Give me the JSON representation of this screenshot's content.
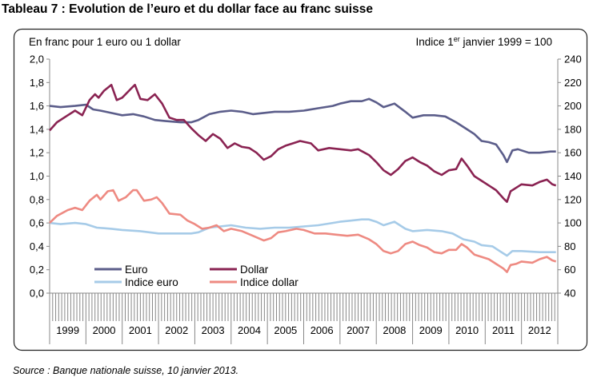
{
  "title": "Tableau 7 : Evolution de l’euro et du dollar face au franc suisse",
  "source": "Source : Banque nationale suisse, 10 janvier 2013.",
  "colors": {
    "euro": "#5b5d8a",
    "dollar": "#8a2352",
    "indice_euro": "#a6cbe8",
    "indice_dollar": "#ee8a82",
    "axis": "#888888",
    "frame": "#222222"
  },
  "chart_data": {
    "type": "line",
    "left_axis_note": "En franc pour 1 euro ou 1 dollar",
    "right_axis_note": {
      "before": "Indice 1",
      "sup": "er",
      "after": " janvier 1999 = 100"
    },
    "left_ylim": [
      0,
      2.0
    ],
    "left_ticks": [
      "0,0",
      "0,2",
      "0,4",
      "0,6",
      "0,8",
      "1,0",
      "1,2",
      "1,4",
      "1,6",
      "1,8",
      "2,0"
    ],
    "right_ylim": [
      40,
      240
    ],
    "right_ticks": [
      "40",
      "60",
      "80",
      "100",
      "120",
      "140",
      "160",
      "180",
      "200",
      "220",
      "240"
    ],
    "years": [
      "1999",
      "2000",
      "2001",
      "2002",
      "2003",
      "2004",
      "2005",
      "2006",
      "2007",
      "2008",
      "2009",
      "2010",
      "2011",
      "2012"
    ],
    "xlim": [
      1999.0,
      2013.0
    ],
    "grid": false,
    "legend_position": "bottom-left",
    "series": [
      {
        "name": "Euro",
        "axis": "left",
        "points": [
          [
            1999.0,
            1.6
          ],
          [
            1999.3,
            1.59
          ],
          [
            1999.7,
            1.6
          ],
          [
            2000.0,
            1.61
          ],
          [
            2000.2,
            1.57
          ],
          [
            2000.4,
            1.56
          ],
          [
            2000.7,
            1.54
          ],
          [
            2001.0,
            1.52
          ],
          [
            2001.3,
            1.53
          ],
          [
            2001.6,
            1.51
          ],
          [
            2001.9,
            1.48
          ],
          [
            2002.2,
            1.47
          ],
          [
            2002.6,
            1.46
          ],
          [
            2002.9,
            1.46
          ],
          [
            2003.1,
            1.48
          ],
          [
            2003.4,
            1.53
          ],
          [
            2003.7,
            1.55
          ],
          [
            2004.0,
            1.56
          ],
          [
            2004.3,
            1.55
          ],
          [
            2004.6,
            1.53
          ],
          [
            2004.9,
            1.54
          ],
          [
            2005.2,
            1.55
          ],
          [
            2005.6,
            1.55
          ],
          [
            2006.0,
            1.56
          ],
          [
            2006.4,
            1.58
          ],
          [
            2006.8,
            1.6
          ],
          [
            2007.0,
            1.62
          ],
          [
            2007.3,
            1.64
          ],
          [
            2007.6,
            1.64
          ],
          [
            2007.8,
            1.66
          ],
          [
            2008.0,
            1.63
          ],
          [
            2008.2,
            1.59
          ],
          [
            2008.5,
            1.62
          ],
          [
            2008.8,
            1.55
          ],
          [
            2009.0,
            1.5
          ],
          [
            2009.3,
            1.52
          ],
          [
            2009.6,
            1.52
          ],
          [
            2009.9,
            1.51
          ],
          [
            2010.2,
            1.46
          ],
          [
            2010.5,
            1.4
          ],
          [
            2010.7,
            1.36
          ],
          [
            2010.9,
            1.3
          ],
          [
            2011.1,
            1.29
          ],
          [
            2011.3,
            1.27
          ],
          [
            2011.5,
            1.18
          ],
          [
            2011.6,
            1.12
          ],
          [
            2011.75,
            1.22
          ],
          [
            2011.9,
            1.23
          ],
          [
            2012.2,
            1.2
          ],
          [
            2012.5,
            1.2
          ],
          [
            2012.8,
            1.21
          ],
          [
            2012.95,
            1.21
          ]
        ]
      },
      {
        "name": "Dollar",
        "axis": "left",
        "points": [
          [
            1999.0,
            1.39
          ],
          [
            1999.2,
            1.46
          ],
          [
            1999.5,
            1.52
          ],
          [
            1999.7,
            1.56
          ],
          [
            1999.9,
            1.52
          ],
          [
            2000.1,
            1.65
          ],
          [
            2000.25,
            1.7
          ],
          [
            2000.35,
            1.67
          ],
          [
            2000.5,
            1.73
          ],
          [
            2000.7,
            1.78
          ],
          [
            2000.85,
            1.65
          ],
          [
            2001.0,
            1.67
          ],
          [
            2001.25,
            1.75
          ],
          [
            2001.35,
            1.78
          ],
          [
            2001.5,
            1.66
          ],
          [
            2001.7,
            1.65
          ],
          [
            2001.9,
            1.7
          ],
          [
            2002.1,
            1.62
          ],
          [
            2002.3,
            1.5
          ],
          [
            2002.5,
            1.48
          ],
          [
            2002.7,
            1.48
          ],
          [
            2002.9,
            1.41
          ],
          [
            2003.1,
            1.35
          ],
          [
            2003.3,
            1.3
          ],
          [
            2003.5,
            1.36
          ],
          [
            2003.7,
            1.32
          ],
          [
            2003.9,
            1.24
          ],
          [
            2004.1,
            1.28
          ],
          [
            2004.3,
            1.25
          ],
          [
            2004.5,
            1.24
          ],
          [
            2004.7,
            1.2
          ],
          [
            2004.9,
            1.14
          ],
          [
            2005.1,
            1.17
          ],
          [
            2005.3,
            1.23
          ],
          [
            2005.5,
            1.26
          ],
          [
            2005.7,
            1.28
          ],
          [
            2005.9,
            1.3
          ],
          [
            2006.2,
            1.28
          ],
          [
            2006.4,
            1.22
          ],
          [
            2006.7,
            1.24
          ],
          [
            2007.0,
            1.23
          ],
          [
            2007.3,
            1.22
          ],
          [
            2007.5,
            1.23
          ],
          [
            2007.8,
            1.18
          ],
          [
            2008.0,
            1.12
          ],
          [
            2008.2,
            1.05
          ],
          [
            2008.4,
            1.01
          ],
          [
            2008.6,
            1.06
          ],
          [
            2008.8,
            1.13
          ],
          [
            2009.0,
            1.16
          ],
          [
            2009.2,
            1.12
          ],
          [
            2009.4,
            1.09
          ],
          [
            2009.6,
            1.04
          ],
          [
            2009.8,
            1.01
          ],
          [
            2010.0,
            1.05
          ],
          [
            2010.2,
            1.06
          ],
          [
            2010.35,
            1.15
          ],
          [
            2010.5,
            1.09
          ],
          [
            2010.7,
            1.0
          ],
          [
            2010.9,
            0.96
          ],
          [
            2011.1,
            0.92
          ],
          [
            2011.3,
            0.88
          ],
          [
            2011.5,
            0.81
          ],
          [
            2011.6,
            0.78
          ],
          [
            2011.7,
            0.87
          ],
          [
            2011.85,
            0.9
          ],
          [
            2012.0,
            0.93
          ],
          [
            2012.3,
            0.92
          ],
          [
            2012.5,
            0.95
          ],
          [
            2012.7,
            0.97
          ],
          [
            2012.85,
            0.93
          ],
          [
            2012.95,
            0.92
          ]
        ]
      },
      {
        "name": "Indice euro",
        "axis": "left",
        "points": [
          [
            1999.0,
            0.6
          ],
          [
            1999.3,
            0.59
          ],
          [
            1999.7,
            0.6
          ],
          [
            2000.0,
            0.59
          ],
          [
            2000.3,
            0.56
          ],
          [
            2000.7,
            0.55
          ],
          [
            2001.0,
            0.54
          ],
          [
            2001.5,
            0.53
          ],
          [
            2002.0,
            0.51
          ],
          [
            2002.5,
            0.51
          ],
          [
            2002.9,
            0.51
          ],
          [
            2003.1,
            0.52
          ],
          [
            2003.4,
            0.56
          ],
          [
            2003.7,
            0.57
          ],
          [
            2004.0,
            0.58
          ],
          [
            2004.4,
            0.56
          ],
          [
            2004.8,
            0.55
          ],
          [
            2005.2,
            0.56
          ],
          [
            2005.6,
            0.56
          ],
          [
            2006.0,
            0.57
          ],
          [
            2006.4,
            0.58
          ],
          [
            2006.8,
            0.6
          ],
          [
            2007.0,
            0.61
          ],
          [
            2007.3,
            0.62
          ],
          [
            2007.6,
            0.63
          ],
          [
            2007.8,
            0.63
          ],
          [
            2008.0,
            0.61
          ],
          [
            2008.2,
            0.58
          ],
          [
            2008.5,
            0.61
          ],
          [
            2008.8,
            0.55
          ],
          [
            2009.0,
            0.53
          ],
          [
            2009.4,
            0.54
          ],
          [
            2009.8,
            0.53
          ],
          [
            2010.1,
            0.51
          ],
          [
            2010.4,
            0.46
          ],
          [
            2010.7,
            0.44
          ],
          [
            2010.9,
            0.41
          ],
          [
            2011.2,
            0.4
          ],
          [
            2011.4,
            0.36
          ],
          [
            2011.6,
            0.32
          ],
          [
            2011.75,
            0.36
          ],
          [
            2012.0,
            0.36
          ],
          [
            2012.5,
            0.35
          ],
          [
            2012.95,
            0.35
          ]
        ]
      },
      {
        "name": "Indice dollar",
        "axis": "left",
        "points": [
          [
            1999.0,
            0.6
          ],
          [
            1999.2,
            0.66
          ],
          [
            1999.5,
            0.71
          ],
          [
            1999.7,
            0.73
          ],
          [
            1999.9,
            0.71
          ],
          [
            2000.1,
            0.79
          ],
          [
            2000.3,
            0.84
          ],
          [
            2000.4,
            0.8
          ],
          [
            2000.6,
            0.87
          ],
          [
            2000.75,
            0.88
          ],
          [
            2000.9,
            0.79
          ],
          [
            2001.1,
            0.82
          ],
          [
            2001.3,
            0.88
          ],
          [
            2001.4,
            0.88
          ],
          [
            2001.6,
            0.79
          ],
          [
            2001.8,
            0.8
          ],
          [
            2001.95,
            0.82
          ],
          [
            2002.1,
            0.77
          ],
          [
            2002.3,
            0.68
          ],
          [
            2002.6,
            0.67
          ],
          [
            2002.8,
            0.62
          ],
          [
            2003.0,
            0.59
          ],
          [
            2003.2,
            0.55
          ],
          [
            2003.4,
            0.56
          ],
          [
            2003.6,
            0.58
          ],
          [
            2003.8,
            0.53
          ],
          [
            2004.0,
            0.55
          ],
          [
            2004.3,
            0.53
          ],
          [
            2004.6,
            0.49
          ],
          [
            2004.9,
            0.45
          ],
          [
            2005.1,
            0.47
          ],
          [
            2005.3,
            0.52
          ],
          [
            2005.5,
            0.53
          ],
          [
            2005.8,
            0.55
          ],
          [
            2006.0,
            0.54
          ],
          [
            2006.3,
            0.51
          ],
          [
            2006.6,
            0.51
          ],
          [
            2006.9,
            0.5
          ],
          [
            2007.2,
            0.49
          ],
          [
            2007.5,
            0.5
          ],
          [
            2007.8,
            0.46
          ],
          [
            2008.0,
            0.42
          ],
          [
            2008.2,
            0.36
          ],
          [
            2008.4,
            0.34
          ],
          [
            2008.6,
            0.36
          ],
          [
            2008.8,
            0.42
          ],
          [
            2009.0,
            0.44
          ],
          [
            2009.2,
            0.41
          ],
          [
            2009.4,
            0.39
          ],
          [
            2009.6,
            0.35
          ],
          [
            2009.8,
            0.34
          ],
          [
            2010.0,
            0.37
          ],
          [
            2010.2,
            0.37
          ],
          [
            2010.35,
            0.42
          ],
          [
            2010.5,
            0.39
          ],
          [
            2010.7,
            0.33
          ],
          [
            2010.9,
            0.31
          ],
          [
            2011.1,
            0.29
          ],
          [
            2011.3,
            0.25
          ],
          [
            2011.5,
            0.21
          ],
          [
            2011.6,
            0.18
          ],
          [
            2011.7,
            0.24
          ],
          [
            2011.85,
            0.25
          ],
          [
            2012.0,
            0.27
          ],
          [
            2012.3,
            0.26
          ],
          [
            2012.5,
            0.29
          ],
          [
            2012.7,
            0.31
          ],
          [
            2012.85,
            0.28
          ],
          [
            2012.95,
            0.27
          ]
        ]
      }
    ]
  }
}
